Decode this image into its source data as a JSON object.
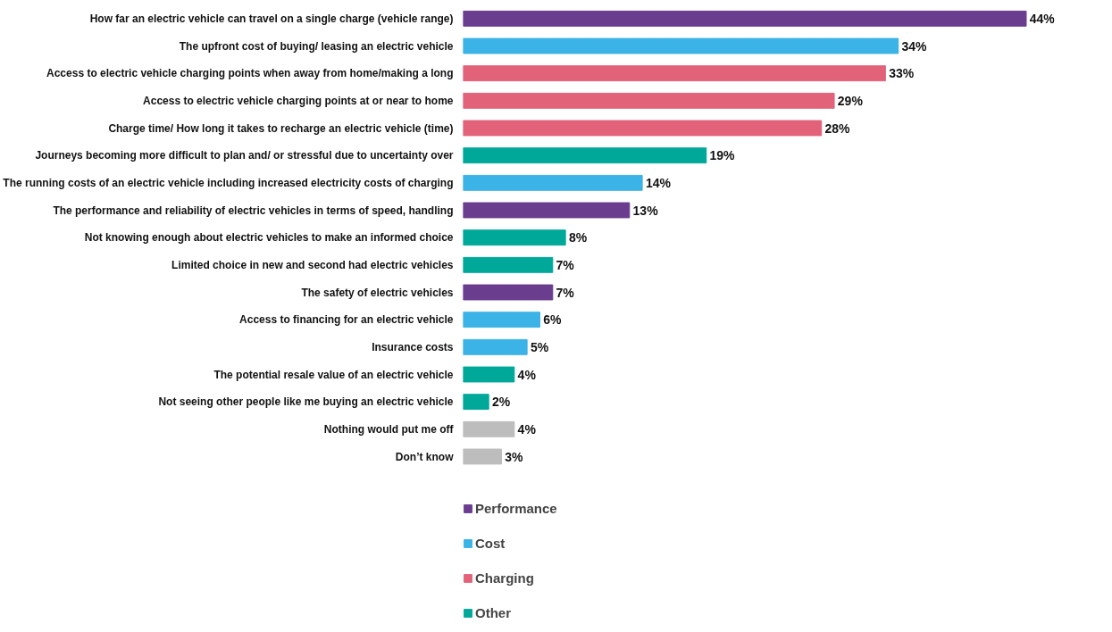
{
  "chart_data": {
    "type": "bar",
    "orientation": "horizontal",
    "stacked": true,
    "legend": "bottom",
    "grid": false,
    "categories": [
      "How far an electric vehicle can travel on a single charge (vehicle range)",
      "The upfront cost of buying/ leasing an electric vehicle",
      "Access to electric vehicle charging points when away from home/making a long",
      "Access to electric vehicle charging points at or near to home",
      "Charge time/ How long it takes to recharge an electric vehicle (time)",
      "Journeys becoming more difficult to plan and/ or stressful due to uncertainty over",
      "The running costs of an electric vehicle including increased electricity costs of charging",
      "The performance and reliability of electric vehicles in terms of speed, handling",
      "Not knowing enough about electric vehicles to make an informed choice",
      "Limited choice in new and second had electric vehicles",
      "The safety of electric vehicles",
      "Access to financing for an electric vehicle",
      "Insurance costs",
      "The potential resale value of an electric vehicle",
      "Not seeing other people like me buying an electric vehicle",
      "Nothing would put me off",
      "Don’t know"
    ],
    "series": [
      {
        "name": "Performance",
        "color": "#6a3d8f",
        "values": [
          44,
          null,
          null,
          null,
          null,
          null,
          null,
          13,
          null,
          null,
          7,
          null,
          null,
          null,
          null,
          null,
          null
        ],
        "value_labels": [
          "44%",
          null,
          null,
          null,
          null,
          null,
          null,
          "13%",
          null,
          null,
          "7%",
          null,
          null,
          null,
          null,
          null,
          null
        ]
      },
      {
        "name": "Cost",
        "color": "#3bb3e6",
        "values": [
          null,
          34,
          null,
          null,
          null,
          null,
          14,
          null,
          null,
          null,
          null,
          6,
          5,
          null,
          null,
          null,
          null
        ],
        "value_labels": [
          null,
          "34%",
          null,
          null,
          null,
          null,
          "14%",
          null,
          null,
          null,
          null,
          "6%",
          "5%",
          null,
          null,
          null,
          null
        ]
      },
      {
        "name": "Charging",
        "color": "#e2627a",
        "values": [
          null,
          null,
          33,
          29,
          28,
          null,
          null,
          null,
          null,
          null,
          null,
          null,
          null,
          null,
          null,
          null,
          null
        ],
        "value_labels": [
          null,
          null,
          "33%",
          "29%",
          "28%",
          null,
          null,
          null,
          null,
          null,
          null,
          null,
          null,
          null,
          null,
          null,
          null
        ]
      },
      {
        "name": "Other",
        "color": "#00a89a",
        "values": [
          null,
          null,
          null,
          null,
          null,
          19,
          null,
          null,
          8,
          7,
          null,
          null,
          null,
          4,
          2,
          null,
          null
        ],
        "value_labels": [
          null,
          null,
          null,
          null,
          null,
          "19%",
          null,
          null,
          "8%",
          "7%",
          null,
          null,
          null,
          "4%",
          "2%",
          null,
          null
        ]
      },
      {
        "color": "#bdbdbd",
        "values": [
          null,
          null,
          null,
          null,
          null,
          null,
          null,
          null,
          null,
          null,
          null,
          null,
          null,
          null,
          null,
          4,
          3
        ],
        "value_labels": [
          null,
          null,
          null,
          null,
          null,
          null,
          null,
          null,
          null,
          null,
          null,
          null,
          null,
          null,
          null,
          "4%",
          "3%"
        ]
      }
    ]
  }
}
